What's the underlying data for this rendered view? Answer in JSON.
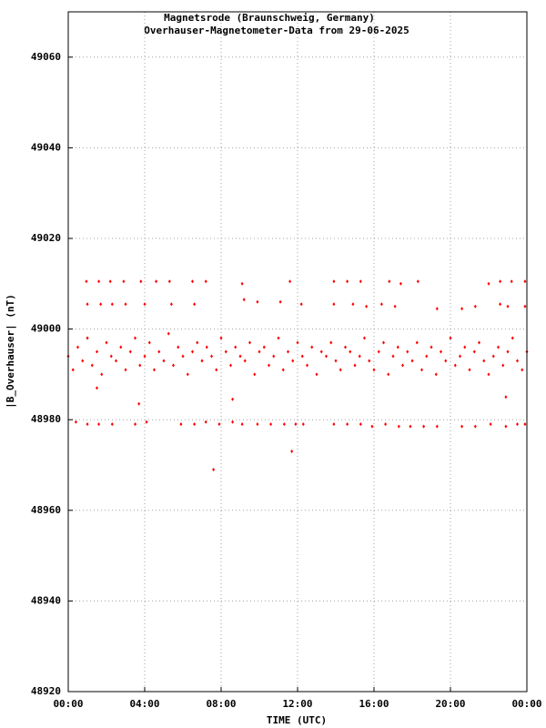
{
  "chart_data": {
    "type": "scatter",
    "title": "Magnetsrode (Braunschweig, Germany)",
    "subtitle": "Overhauser-Magnetometer-Data from 29-06-2025",
    "x_label": "TIME (UTC)",
    "y_label": "|B_Overhauser| (nT)",
    "xlim": [
      0,
      24
    ],
    "xticks": [
      {
        "value": 0,
        "label": "00:00"
      },
      {
        "value": 4,
        "label": "04:00"
      },
      {
        "value": 8,
        "label": "08:00"
      },
      {
        "value": 12,
        "label": "12:00"
      },
      {
        "value": 16,
        "label": "16:00"
      },
      {
        "value": 20,
        "label": "20:00"
      },
      {
        "value": 24,
        "label": "00:00"
      }
    ],
    "ylim": [
      48920,
      49070
    ],
    "yticks": [
      48920,
      48940,
      48960,
      48980,
      49000,
      49020,
      49040,
      49060
    ],
    "grid": true,
    "series": [
      {
        "color": "#ff0000",
        "x": [
          0,
          0.25,
          0.5,
          0.75,
          1,
          1.25,
          1.5,
          1.75,
          2,
          2.25,
          2.5,
          2.75,
          3,
          3.25,
          3.5,
          3.75,
          4,
          4.25,
          4.5,
          4.75,
          5,
          5.25,
          5.5,
          5.75,
          6,
          6.25,
          6.5,
          6.75,
          7,
          7.25,
          7.5,
          7.75,
          8,
          8.25,
          8.5,
          8.75,
          9,
          9.25,
          9.5,
          9.75,
          10,
          10.25,
          10.5,
          10.75,
          11,
          11.25,
          11.5,
          11.75,
          12,
          12.25,
          12.5,
          12.75,
          13,
          13.25,
          13.5,
          13.75,
          14,
          14.25,
          14.5,
          14.75,
          15,
          15.25,
          15.5,
          15.75,
          16,
          16.25,
          16.5,
          16.75,
          17,
          17.25,
          17.5,
          17.75,
          18,
          18.25,
          18.5,
          18.75,
          19,
          19.25,
          19.5,
          19.75,
          20,
          20.25,
          20.5,
          20.75,
          21,
          21.25,
          21.5,
          21.75,
          22,
          22.25,
          22.5,
          22.75,
          23,
          23.25,
          23.5,
          23.75,
          24
        ],
        "values": [
          48994,
          48991,
          48996,
          48993,
          48998,
          48992,
          48995,
          48990,
          48997,
          48994,
          48993,
          48996,
          48991,
          48995,
          48998,
          48992,
          48994,
          48997,
          48991,
          48995,
          48993,
          48999,
          48992,
          48996,
          48994,
          48990,
          48995,
          48997,
          48993,
          48996,
          48994,
          48991,
          48998,
          48995,
          48992,
          48996,
          48994,
          48993,
          48997,
          48990,
          48995,
          48996,
          48992,
          48994,
          48998,
          48991,
          48995,
          48993,
          48997,
          48994,
          48992,
          48996,
          48990,
          48995,
          48994,
          48997,
          48993,
          48991,
          48996,
          48995,
          48992,
          48994,
          48998,
          48993,
          48991,
          48995,
          48997,
          48990,
          48994,
          48996,
          48992,
          48995,
          48993,
          48997,
          48991,
          48994,
          48996,
          48990,
          48995,
          48993,
          48998,
          48992,
          48994,
          48996,
          48991,
          48995,
          48997,
          48993,
          48990,
          48994,
          48996,
          48992,
          48995,
          48998,
          48993,
          48991,
          48995
        ]
      },
      {
        "color": "#ff0000",
        "x": [
          0.95,
          1.6,
          2.2,
          2.9,
          3.8,
          4.6,
          5.3,
          6.5,
          7.2,
          9.1,
          11.6,
          13.9,
          14.6,
          15.3,
          16.8,
          17.4,
          18.3,
          22.0,
          22.6,
          23.2,
          23.9
        ],
        "values": [
          49010.5,
          49010.5,
          49010.5,
          49010.5,
          49010.5,
          49010.5,
          49010.5,
          49010.5,
          49010.5,
          49010,
          49010.5,
          49010.5,
          49010.5,
          49010.5,
          49010.5,
          49010,
          49010.5,
          49010,
          49010.5,
          49010.5,
          49010.5
        ]
      },
      {
        "color": "#ff0000",
        "x": [
          1.0,
          1.7,
          2.3,
          3.0,
          4.0,
          5.4,
          6.6,
          9.2,
          9.9,
          11.1,
          12.2,
          13.9,
          14.9,
          15.6,
          16.4,
          17.1,
          19.3,
          20.6,
          21.3,
          22.6,
          23.0,
          23.9
        ],
        "values": [
          49005.5,
          49005.5,
          49005.5,
          49005.5,
          49005.5,
          49005.5,
          49005.5,
          49006.5,
          49006,
          49006,
          49005.5,
          49005.5,
          49005.5,
          49005,
          49005.5,
          49005,
          49004.5,
          49004.5,
          49005,
          49005.5,
          49005,
          49005
        ]
      },
      {
        "color": "#ff0000",
        "x": [
          0.4,
          1.0,
          1.6,
          2.3,
          3.5,
          4.1,
          5.9,
          6.6,
          7.2,
          7.9,
          8.6,
          9.1,
          9.9,
          10.6,
          11.3,
          11.9,
          12.3,
          13.9,
          14.6,
          15.3,
          15.9,
          16.6,
          17.3,
          17.9,
          18.6,
          19.3,
          20.6,
          21.3,
          22.1,
          22.9,
          23.5,
          23.9
        ],
        "values": [
          48979.5,
          48979,
          48979,
          48979,
          48979,
          48979.5,
          48979,
          48979,
          48979.5,
          48979,
          48979.5,
          48979,
          48979,
          48979,
          48979,
          48979,
          48979,
          48979,
          48979,
          48979,
          48978.5,
          48979,
          48978.5,
          48978.5,
          48978.5,
          48978.5,
          48978.5,
          48978.5,
          48979,
          48978.5,
          48979,
          48979
        ]
      },
      {
        "color": "#ff0000",
        "x": [
          1.5,
          3.7,
          8.6,
          7.6,
          11.7,
          22.9
        ],
        "values": [
          48987,
          48983.5,
          48984.5,
          48969,
          48973,
          48985
        ]
      }
    ]
  }
}
